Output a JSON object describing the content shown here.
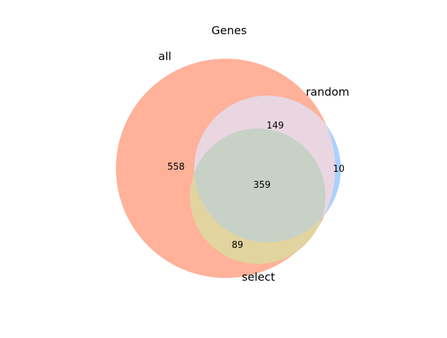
{
  "title": "Genes",
  "sets": [
    {
      "name": "all",
      "color": "#ffb199"
    },
    {
      "name": "random",
      "color": "#a9d1ff"
    },
    {
      "name": "select",
      "color": "#e2d49e"
    }
  ],
  "regions": [
    {
      "sets": [
        "all"
      ],
      "count": "558"
    },
    {
      "sets": [
        "all",
        "random"
      ],
      "count": "149"
    },
    {
      "sets": [
        "random"
      ],
      "count": "10"
    },
    {
      "sets": [
        "all",
        "random",
        "select"
      ],
      "count": "359"
    },
    {
      "sets": [
        "all",
        "select"
      ],
      "count": "89"
    }
  ],
  "overlap_colors": {
    "all_random": "#e9d6e1",
    "all_random_select": "#c8d1c6"
  }
}
